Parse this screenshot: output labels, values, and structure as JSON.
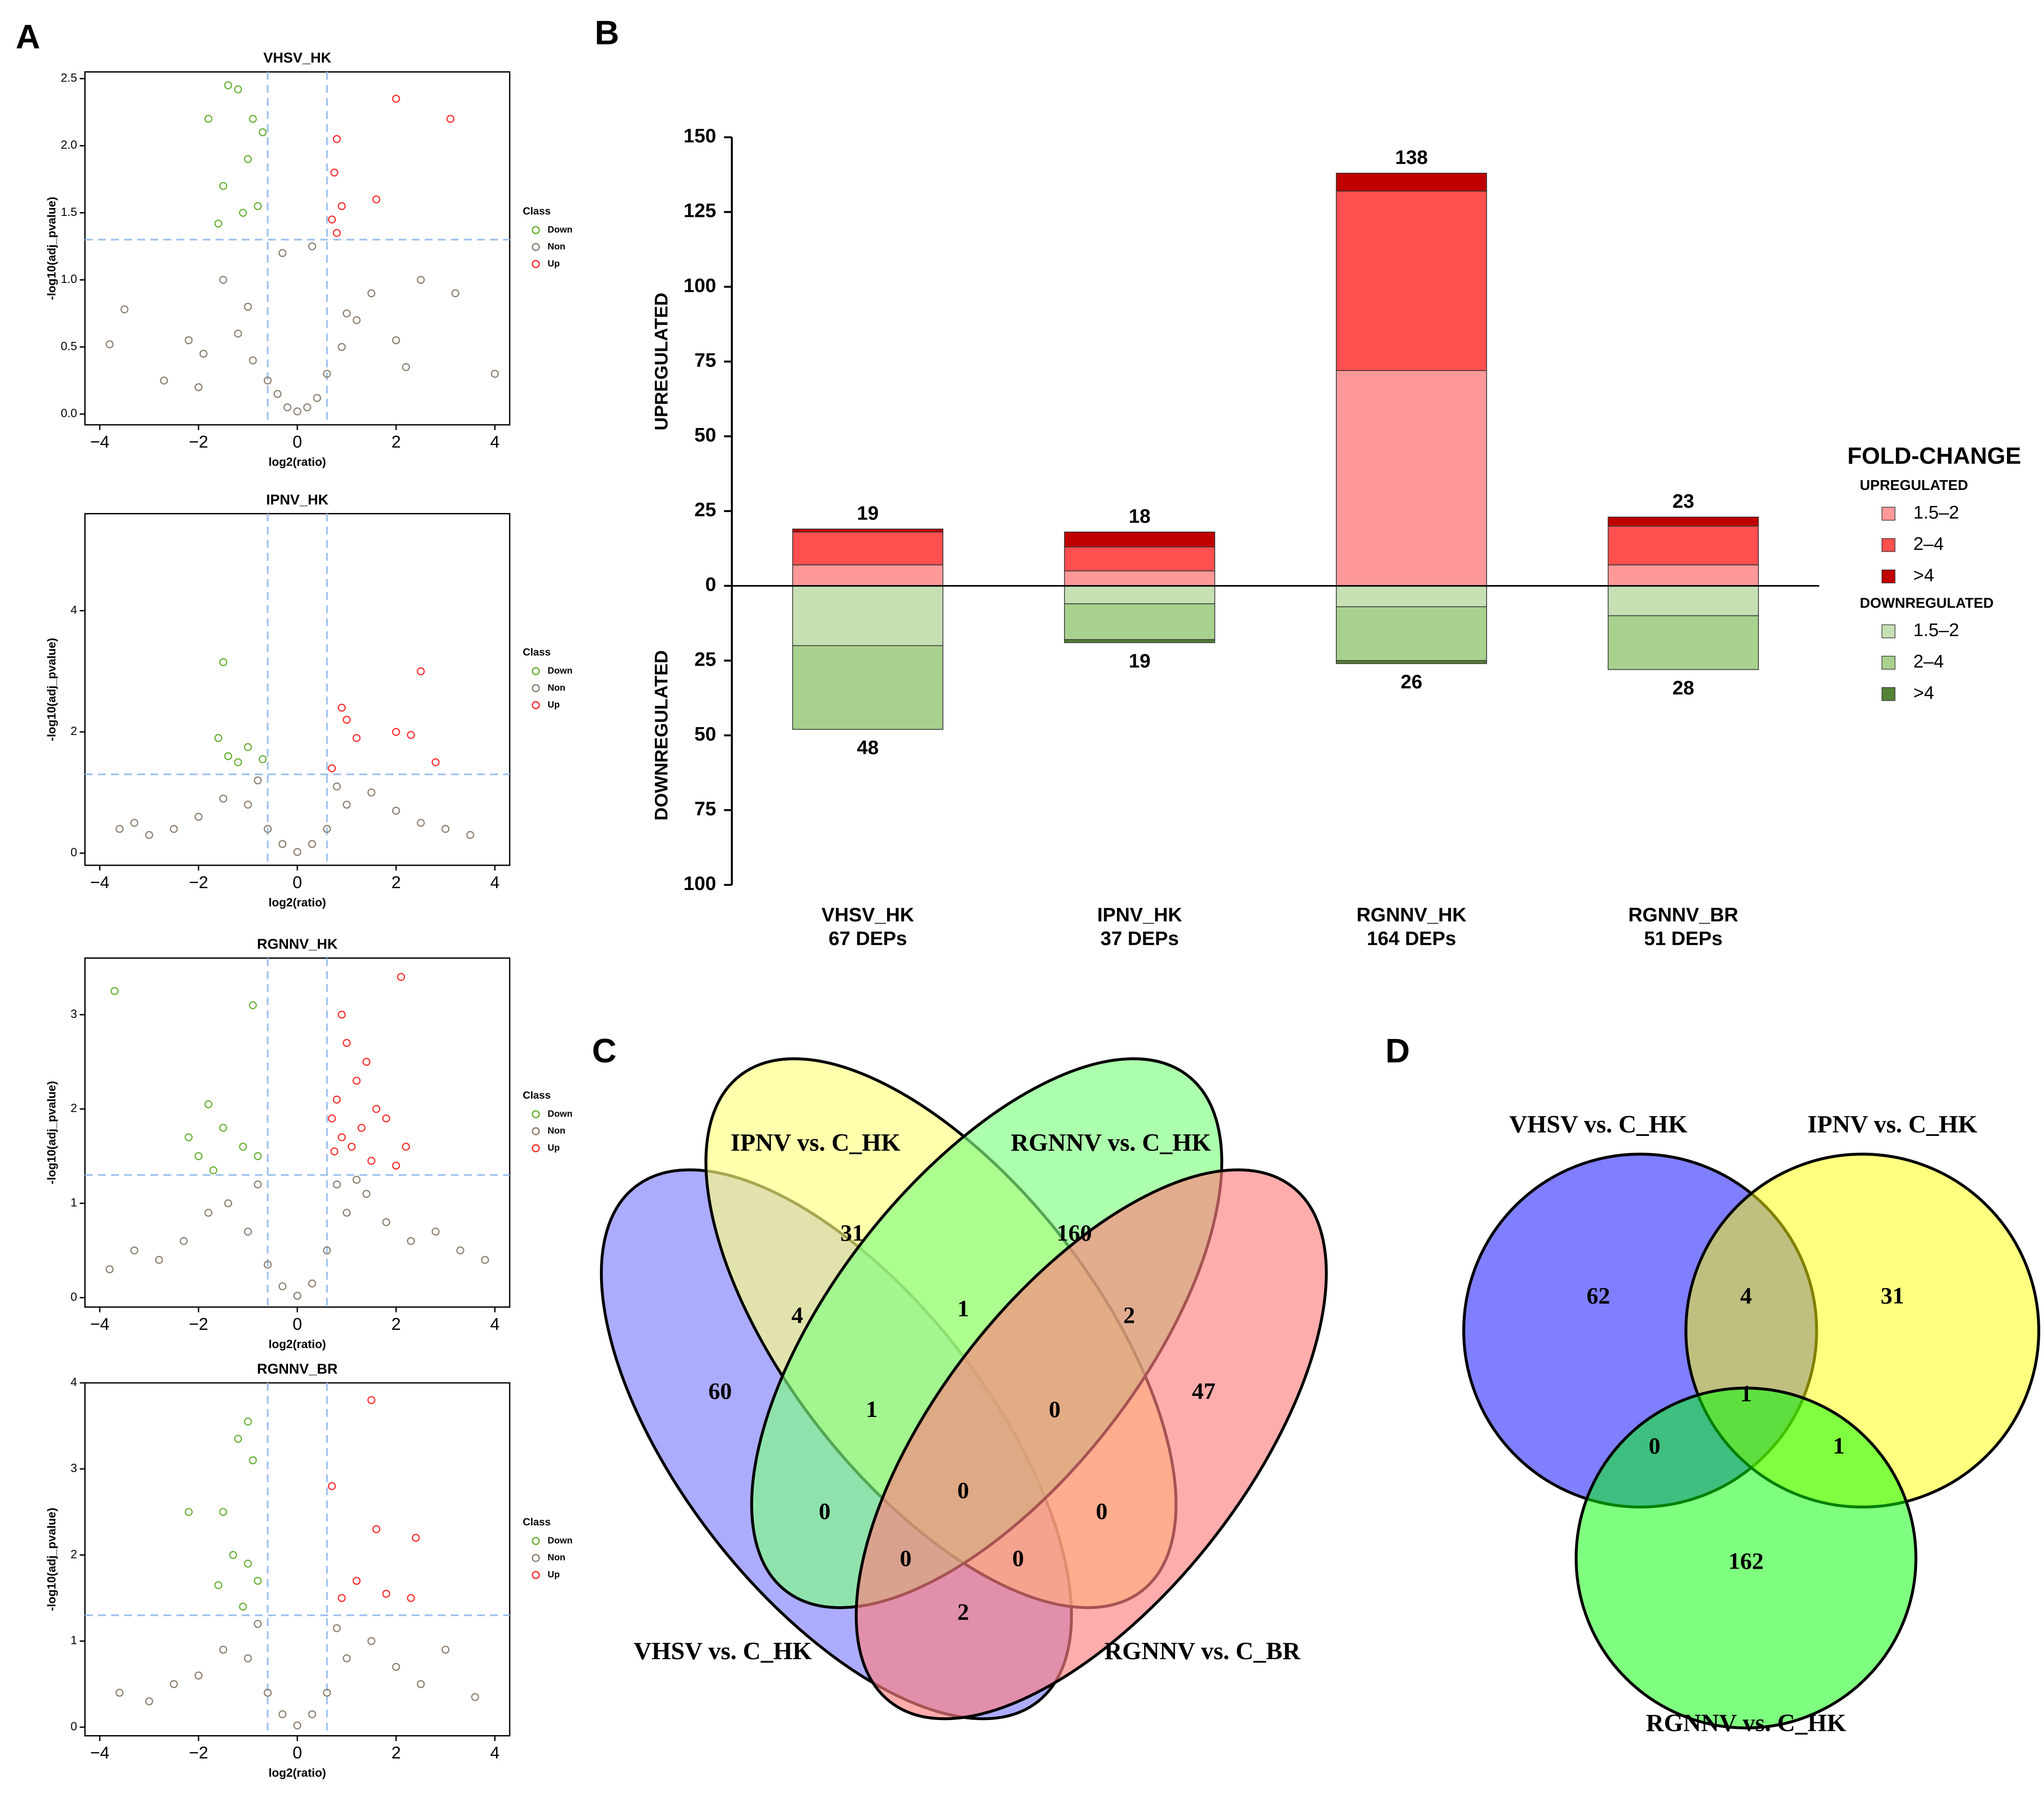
{
  "chart_data": [
    {
      "type": "scatter",
      "panel": "A",
      "title": "VHSV_HK",
      "xlabel": "log2(ratio)",
      "ylabel": "-log10(adj_pvalue)",
      "xlim": [
        -4.3,
        4.3
      ],
      "ylim": [
        -0.08,
        2.55
      ],
      "xticks": [
        {
          "value": -4,
          "label": "−4"
        },
        {
          "value": -2,
          "label": "−2"
        },
        0,
        2,
        4
      ],
      "yticks": [
        {
          "value": 0,
          "label": "0.0"
        },
        0.5,
        {
          "value": 1,
          "label": "1.0"
        },
        1.5,
        {
          "value": 2,
          "label": "2.0"
        },
        2.5
      ],
      "vlines": [
        -0.6,
        0.6
      ],
      "hline": 1.3,
      "legend_title": "Class",
      "series": [
        {
          "name": "Down",
          "color": "#66b032",
          "x": [
            -1.4,
            -1.2,
            -0.9,
            -1.8,
            -1.0,
            -0.7,
            -1.5,
            -0.8,
            -1.1,
            -1.6
          ],
          "values": [
            2.45,
            2.42,
            2.2,
            2.2,
            1.9,
            2.1,
            1.7,
            1.55,
            1.5,
            1.42
          ]
        },
        {
          "name": "Non",
          "color": "#8c7e6e",
          "x": [
            -3.8,
            -3.5,
            -2.7,
            -2.2,
            -1.9,
            -1.5,
            -1.2,
            -0.9,
            -0.6,
            -0.4,
            -0.2,
            0,
            0.2,
            0.4,
            0.6,
            0.9,
            1.2,
            1.5,
            2.0,
            2.5,
            3.2,
            4.0,
            -0.3,
            0.3,
            -1.0,
            1.0,
            -2.0,
            2.2
          ],
          "values": [
            0.52,
            0.78,
            0.25,
            0.55,
            0.45,
            1.0,
            0.6,
            0.4,
            0.25,
            0.15,
            0.05,
            0.02,
            0.05,
            0.12,
            0.3,
            0.5,
            0.7,
            0.9,
            0.55,
            1.0,
            0.9,
            0.3,
            1.2,
            1.25,
            0.8,
            0.75,
            0.2,
            0.35
          ]
        },
        {
          "name": "Up",
          "color": "#ff2a2a",
          "x": [
            3.1,
            2.0,
            0.8,
            0.75,
            1.6,
            0.9,
            0.7,
            0.8
          ],
          "values": [
            2.2,
            2.35,
            2.05,
            1.8,
            1.6,
            1.55,
            1.45,
            1.35
          ]
        }
      ]
    },
    {
      "type": "scatter",
      "title": "IPNV_HK",
      "xlabel": "log2(ratio)",
      "ylabel": "-log10(adj_pvalue)",
      "xlim": [
        -4.3,
        4.3
      ],
      "ylim": [
        -0.2,
        5.6
      ],
      "xticks": [
        {
          "value": -4,
          "label": "−4"
        },
        {
          "value": -2,
          "label": "−2"
        },
        0,
        2,
        4
      ],
      "yticks": [
        0,
        2,
        4
      ],
      "vlines": [
        -0.6,
        0.6
      ],
      "hline": 1.3,
      "legend_title": "Class",
      "series": [
        {
          "name": "Down",
          "color": "#66b032",
          "x": [
            -1.5,
            -1.6,
            -1.4,
            -1.2,
            -1.0,
            -0.7
          ],
          "values": [
            3.15,
            1.9,
            1.6,
            1.5,
            1.75,
            1.55
          ]
        },
        {
          "name": "Non",
          "color": "#8c7e6e",
          "x": [
            -3.6,
            -3.3,
            -3.0,
            -2.5,
            -2.0,
            -1.5,
            -1.0,
            -0.6,
            -0.3,
            0,
            0.3,
            0.6,
            1.0,
            1.5,
            2.0,
            2.5,
            3.0,
            3.5,
            -0.8,
            0.8
          ],
          "values": [
            0.4,
            0.5,
            0.3,
            0.4,
            0.6,
            0.9,
            0.8,
            0.4,
            0.15,
            0.02,
            0.15,
            0.4,
            0.8,
            1.0,
            0.7,
            0.5,
            0.4,
            0.3,
            1.2,
            1.1
          ]
        },
        {
          "name": "Up",
          "color": "#ff2a2a",
          "x": [
            0.9,
            1.0,
            1.2,
            2.0,
            2.5,
            2.3,
            2.8,
            0.7
          ],
          "values": [
            2.4,
            2.2,
            1.9,
            2.0,
            3.0,
            1.95,
            1.5,
            1.4
          ]
        }
      ]
    },
    {
      "type": "scatter",
      "title": "RGNNV_HK",
      "xlabel": "log2(ratio)",
      "ylabel": "-log10(adj_pvalue)",
      "xlim": [
        -4.3,
        4.3
      ],
      "ylim": [
        -0.1,
        3.6
      ],
      "xticks": [
        {
          "value": -4,
          "label": "−4"
        },
        {
          "value": -2,
          "label": "−2"
        },
        0,
        2,
        4
      ],
      "yticks": [
        0,
        1,
        2,
        3
      ],
      "vlines": [
        -0.6,
        0.6
      ],
      "hline": 1.3,
      "legend_title": "Class",
      "series": [
        {
          "name": "Down",
          "color": "#66b032",
          "x": [
            -3.7,
            -2.2,
            -2.0,
            -1.8,
            -1.5,
            -1.1,
            -0.8,
            -0.9,
            -1.7
          ],
          "values": [
            3.25,
            1.7,
            1.5,
            2.05,
            1.8,
            1.6,
            1.5,
            3.1,
            1.35
          ]
        },
        {
          "name": "Non",
          "color": "#8c7e6e",
          "x": [
            -3.8,
            -3.3,
            -2.8,
            -2.3,
            -1.8,
            -1.4,
            -1.0,
            -0.6,
            -0.3,
            0,
            0.3,
            0.6,
            1.0,
            1.4,
            1.8,
            2.3,
            2.8,
            3.3,
            3.8,
            -0.8,
            0.8,
            1.2
          ],
          "values": [
            0.3,
            0.5,
            0.4,
            0.6,
            0.9,
            1.0,
            0.7,
            0.35,
            0.12,
            0.02,
            0.15,
            0.5,
            0.9,
            1.1,
            0.8,
            0.6,
            0.7,
            0.5,
            0.4,
            1.2,
            1.2,
            1.25
          ]
        },
        {
          "name": "Up",
          "color": "#ff2a2a",
          "x": [
            2.1,
            0.9,
            1.0,
            1.2,
            0.8,
            0.7,
            1.4,
            1.6,
            0.9,
            1.1,
            0.75,
            1.3,
            2.0,
            1.5,
            1.8,
            2.2
          ],
          "values": [
            3.4,
            3.0,
            2.7,
            2.3,
            2.1,
            1.9,
            2.5,
            2.0,
            1.7,
            1.6,
            1.55,
            1.8,
            1.4,
            1.45,
            1.9,
            1.6
          ]
        }
      ]
    },
    {
      "type": "scatter",
      "title": "RGNNV_BR",
      "xlabel": "log2(ratio)",
      "ylabel": "-log10(adj_pvalue)",
      "xlim": [
        -4.3,
        4.3
      ],
      "ylim": [
        -0.1,
        4.0
      ],
      "xticks": [
        {
          "value": -4,
          "label": "−4"
        },
        {
          "value": -2,
          "label": "−2"
        },
        0,
        2,
        4
      ],
      "yticks": [
        0,
        1,
        2,
        3,
        4
      ],
      "vlines": [
        -0.6,
        0.6
      ],
      "hline": 1.3,
      "legend_title": "Class",
      "series": [
        {
          "name": "Down",
          "color": "#66b032",
          "x": [
            -1.0,
            -1.2,
            -0.9,
            -2.2,
            -1.5,
            -1.3,
            -1.0,
            -0.8,
            -1.6,
            -1.1
          ],
          "values": [
            3.55,
            3.35,
            3.1,
            2.5,
            2.5,
            2.0,
            1.9,
            1.7,
            1.65,
            1.4
          ]
        },
        {
          "name": "Non",
          "color": "#8c7e6e",
          "x": [
            -3.6,
            -3.0,
            -2.5,
            -2.0,
            -1.5,
            -1.0,
            -0.6,
            -0.3,
            0,
            0.3,
            0.6,
            1.0,
            1.5,
            2.0,
            2.5,
            3.0,
            3.6,
            -0.8,
            0.8
          ],
          "values": [
            0.4,
            0.3,
            0.5,
            0.6,
            0.9,
            0.8,
            0.4,
            0.15,
            0.02,
            0.15,
            0.4,
            0.8,
            1.0,
            0.7,
            0.5,
            0.9,
            0.35,
            1.2,
            1.15
          ]
        },
        {
          "name": "Up",
          "color": "#ff2a2a",
          "x": [
            1.5,
            0.7,
            1.6,
            2.4,
            1.2,
            1.8,
            0.9,
            2.3
          ],
          "values": [
            3.8,
            2.8,
            2.3,
            2.2,
            1.7,
            1.55,
            1.5,
            1.5
          ]
        }
      ]
    },
    {
      "type": "bar",
      "panel": "B",
      "categories": [
        "VHSV_HK",
        "IPNV_HK",
        "RGNNV_HK",
        "RGNNV_BR"
      ],
      "category_sublabels": [
        "67 DEPs",
        "37 DEPs",
        "164 DEPs",
        "51 DEPs"
      ],
      "ylim": [
        -100,
        150
      ],
      "yticks": [
        {
          "value": -100,
          "label": "100"
        },
        {
          "value": -75,
          "label": "75"
        },
        {
          "value": -50,
          "label": "50"
        },
        {
          "value": -25,
          "label": "25"
        },
        0,
        25,
        50,
        75,
        100,
        125,
        150
      ],
      "ylabel_up": "UPREGULATED",
      "ylabel_down": "DOWNREGULATED",
      "legend_title": "FOLD-CHANGE",
      "legend_groups": [
        "UPREGULATED",
        "DOWNREGULATED"
      ],
      "totals_up": [
        19,
        18,
        138,
        23
      ],
      "totals_down": [
        48,
        19,
        26,
        28
      ],
      "series": [
        {
          "name": "1.5–2",
          "group": 0,
          "color": "#ff9999",
          "values": [
            7,
            5,
            72,
            7
          ]
        },
        {
          "name": "2–4",
          "group": 0,
          "color": "#ff4f4f",
          "values": [
            11,
            8,
            60,
            13
          ]
        },
        {
          "name": ">4",
          "group": 0,
          "color": "#c00000",
          "values": [
            1,
            5,
            6,
            3
          ]
        },
        {
          "name": "1.5–2",
          "group": 1,
          "color": "#c6e0b4",
          "values": [
            -20,
            -6,
            -7,
            -10
          ]
        },
        {
          "name": "2–4",
          "group": 1,
          "color": "#a9d18e",
          "values": [
            -28,
            -12,
            -18,
            -18
          ]
        },
        {
          "name": ">4",
          "group": 1,
          "color": "#548235",
          "values": [
            0,
            -1,
            -1,
            0
          ]
        }
      ]
    },
    {
      "type": "venn4",
      "panel": "C",
      "sets": [
        {
          "name": "VHSV vs. C_HK",
          "color": "#0000ff"
        },
        {
          "name": "IPNV vs. C_HK",
          "color": "#808000"
        },
        {
          "name": "RGNNV vs. C_HK",
          "color": "#008000"
        },
        {
          "name": "RGNNV vs. C_BR",
          "color": "#ff0000"
        }
      ],
      "fills": [
        "#8080ff",
        "#ffff80",
        "#80ff80",
        "#ff8080"
      ],
      "values": [
        60,
        31,
        160,
        47,
        4,
        1,
        2,
        1,
        0,
        0,
        0,
        0,
        0,
        0,
        2
      ]
    },
    {
      "type": "venn3",
      "panel": "D",
      "sets": [
        {
          "name": "VHSV vs. C_HK",
          "color": "#0000ff"
        },
        {
          "name": "IPNV vs. C_HK",
          "color": "#808000"
        },
        {
          "name": "RGNNV vs. C_HK",
          "color": "#008000"
        }
      ],
      "fills": [
        "#0000ff",
        "#ffff00",
        "#00ff00"
      ],
      "values": [
        62,
        4,
        31,
        1,
        0,
        1,
        162
      ]
    }
  ]
}
